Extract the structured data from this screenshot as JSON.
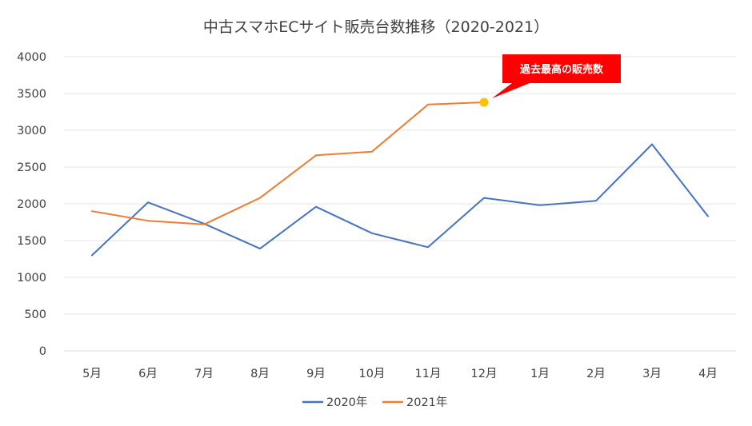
{
  "chart_data": {
    "type": "line",
    "title": "中古スマホECサイト販売台数推移（2020-2021）",
    "categories": [
      "5月",
      "6月",
      "7月",
      "8月",
      "9月",
      "10月",
      "11月",
      "12月",
      "1月",
      "2月",
      "3月",
      "4月"
    ],
    "ylim": [
      0,
      4000
    ],
    "yticks": [
      0,
      500,
      1000,
      1500,
      2000,
      2500,
      3000,
      3500,
      4000
    ],
    "grid": true,
    "legend_position": "bottom",
    "series": [
      {
        "name": "2020年",
        "color": "#4472C4",
        "values": [
          1300,
          2020,
          1730,
          1390,
          1960,
          1600,
          1410,
          2080,
          1980,
          2040,
          2810,
          1830
        ]
      },
      {
        "name": "2021年",
        "color": "#ED7D31",
        "values": [
          1900,
          1770,
          1720,
          2080,
          2660,
          2710,
          3350,
          3380,
          null,
          null,
          null,
          null
        ]
      }
    ],
    "annotation": {
      "text": "過去最高の販売数",
      "series_index": 1,
      "point_index": 7,
      "box_color": "#FF0000",
      "marker_color": "#FFC000"
    }
  }
}
